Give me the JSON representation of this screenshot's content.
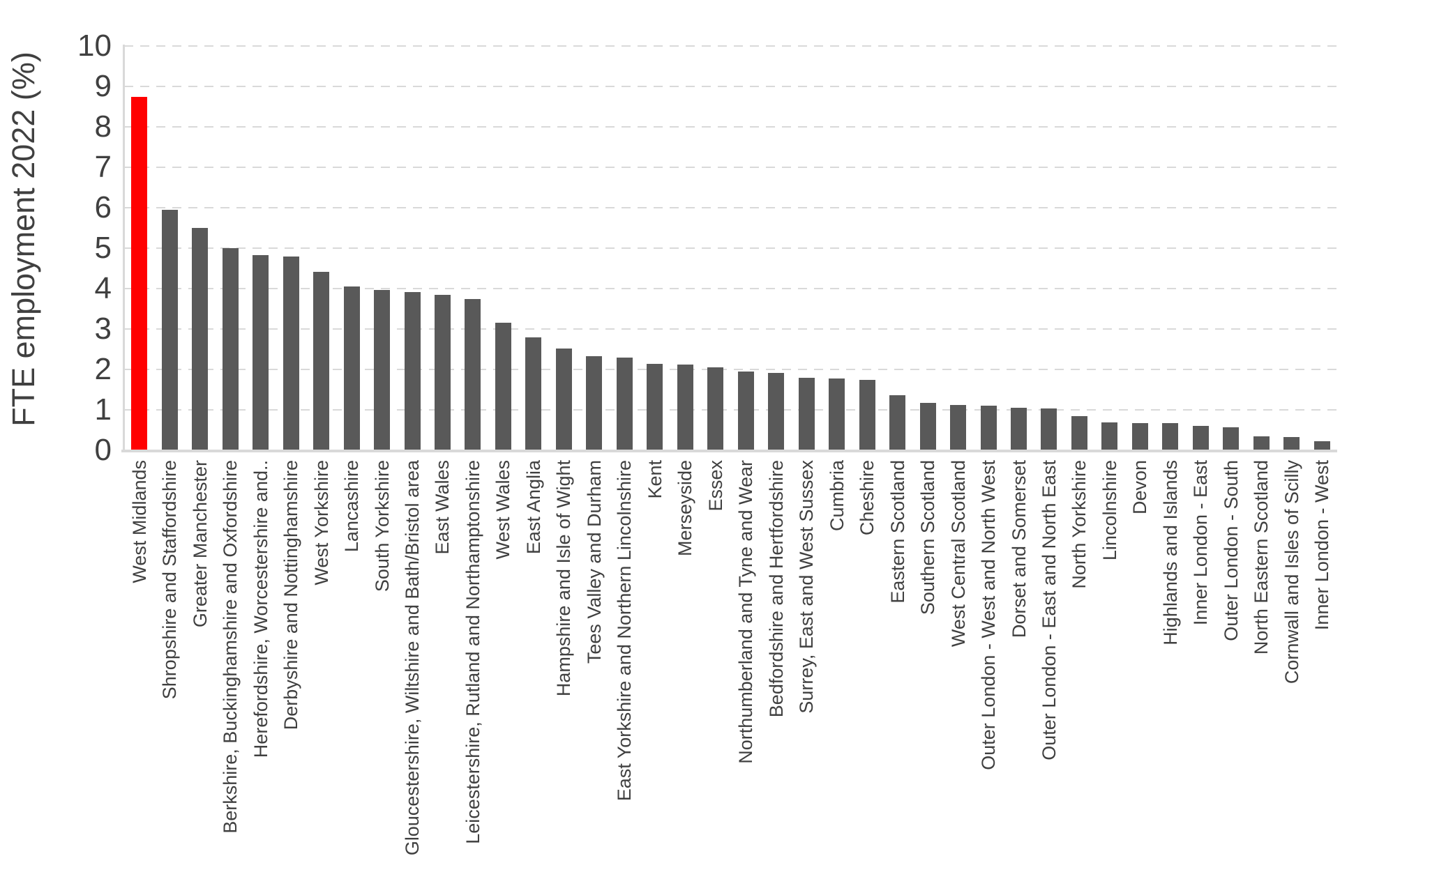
{
  "chart_data": {
    "type": "bar",
    "title": "",
    "xlabel": "",
    "ylabel": "FTE employment 2022 (%)",
    "ylim": [
      0,
      10
    ],
    "yticks": [
      0,
      1,
      2,
      3,
      4,
      5,
      6,
      7,
      8,
      9,
      10
    ],
    "grid": "horizontal-dashed",
    "legend": "none",
    "bar_color": "#595959",
    "highlight": {
      "index": 0,
      "color": "#ff0000"
    },
    "categories": [
      "West Midlands",
      "Shropshire and Staffordshire",
      "Greater Manchester",
      "Berkshire, Buckinghamshire and Oxfordshire",
      "Herefordshire, Worcestershire and..",
      "Derbyshire and Nottinghamshire",
      "West Yorkshire",
      "Lancashire",
      "South Yorkshire",
      "Gloucestershire, Wiltshire and Bath/Bristol area",
      "East Wales",
      "Leicestershire, Rutland and Northamptonshire",
      "West Wales",
      "East Anglia",
      "Hampshire and Isle of Wight",
      "Tees Valley and Durham",
      "East Yorkshire and Northern Lincolnshire",
      "Kent",
      "Merseyside",
      "Essex",
      "Northumberland and Tyne and Wear",
      "Bedfordshire and Hertfordshire",
      "Surrey, East and West Sussex",
      "Cumbria",
      "Cheshire",
      "Eastern Scotland",
      "Southern Scotland",
      "West Central Scotland",
      "Outer London - West and North West",
      "Dorset and Somerset",
      "Outer London - East and North East",
      "North Yorkshire",
      "Lincolnshire",
      "Devon",
      "Highlands and Islands",
      "Inner London - East",
      "Outer London - South",
      "North Eastern Scotland",
      "Cornwall and Isles of Scilly",
      "Inner London - West"
    ],
    "values": [
      8.75,
      5.95,
      5.5,
      5.0,
      4.82,
      4.8,
      4.42,
      4.05,
      3.97,
      3.92,
      3.85,
      3.75,
      3.15,
      2.8,
      2.52,
      2.32,
      2.29,
      2.13,
      2.12,
      2.06,
      1.94,
      1.92,
      1.8,
      1.78,
      1.74,
      1.37,
      1.17,
      1.12,
      1.1,
      1.06,
      1.04,
      0.85,
      0.69,
      0.68,
      0.67,
      0.6,
      0.57,
      0.34,
      0.33,
      0.23
    ]
  }
}
